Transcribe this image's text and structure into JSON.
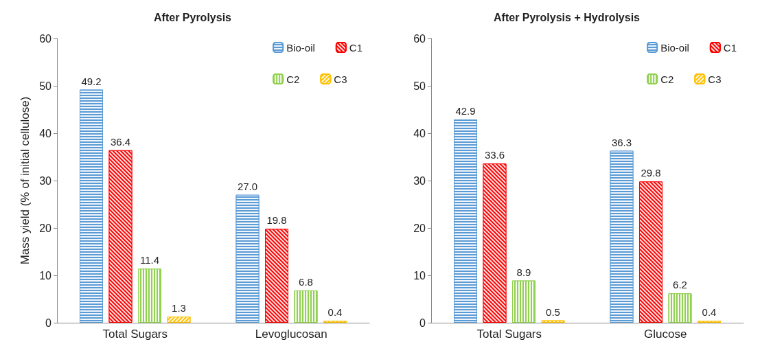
{
  "chart_data": [
    {
      "type": "bar",
      "title": "After Pyrolysis",
      "ylabel": "Mass yield (% of initial cellulose)",
      "categories": [
        "Total Sugars",
        "Levoglucosan"
      ],
      "series": [
        {
          "name": "Bio-oil",
          "color": "#5b9bd5",
          "values": [
            49.2,
            27.0
          ],
          "value_labels": [
            "49.2",
            "27.0"
          ]
        },
        {
          "name": "C1",
          "color": "#ff0000",
          "values": [
            36.4,
            19.8
          ]
        },
        {
          "name": "C2",
          "color": "#92d050",
          "values": [
            11.4,
            6.8
          ]
        },
        {
          "name": "C3",
          "color": "#ffc000",
          "values": [
            1.3,
            0.4
          ]
        }
      ],
      "ylim": [
        0,
        60
      ],
      "yticks": [
        0,
        10,
        20,
        30,
        40,
        50,
        60
      ],
      "data_labels": true,
      "legend": "top right",
      "grid": false
    },
    {
      "type": "bar",
      "title": "After Pyrolysis + Hydrolysis",
      "categories": [
        "Total Sugars",
        "Glucose"
      ],
      "series": [
        {
          "name": "Bio-oil",
          "color": "#5b9bd5",
          "values": [
            42.9,
            36.3
          ]
        },
        {
          "name": "C1",
          "color": "#ff0000",
          "values": [
            33.6,
            29.8
          ]
        },
        {
          "name": "C2",
          "color": "#92d050",
          "values": [
            8.9,
            6.2
          ]
        },
        {
          "name": "C3",
          "color": "#ffc000",
          "values": [
            0.5,
            0.4
          ]
        }
      ],
      "ylim": [
        0,
        60
      ],
      "yticks": [
        0,
        10,
        20,
        30,
        40,
        50,
        60
      ],
      "data_labels": true,
      "legend": "top right",
      "grid": false
    }
  ]
}
